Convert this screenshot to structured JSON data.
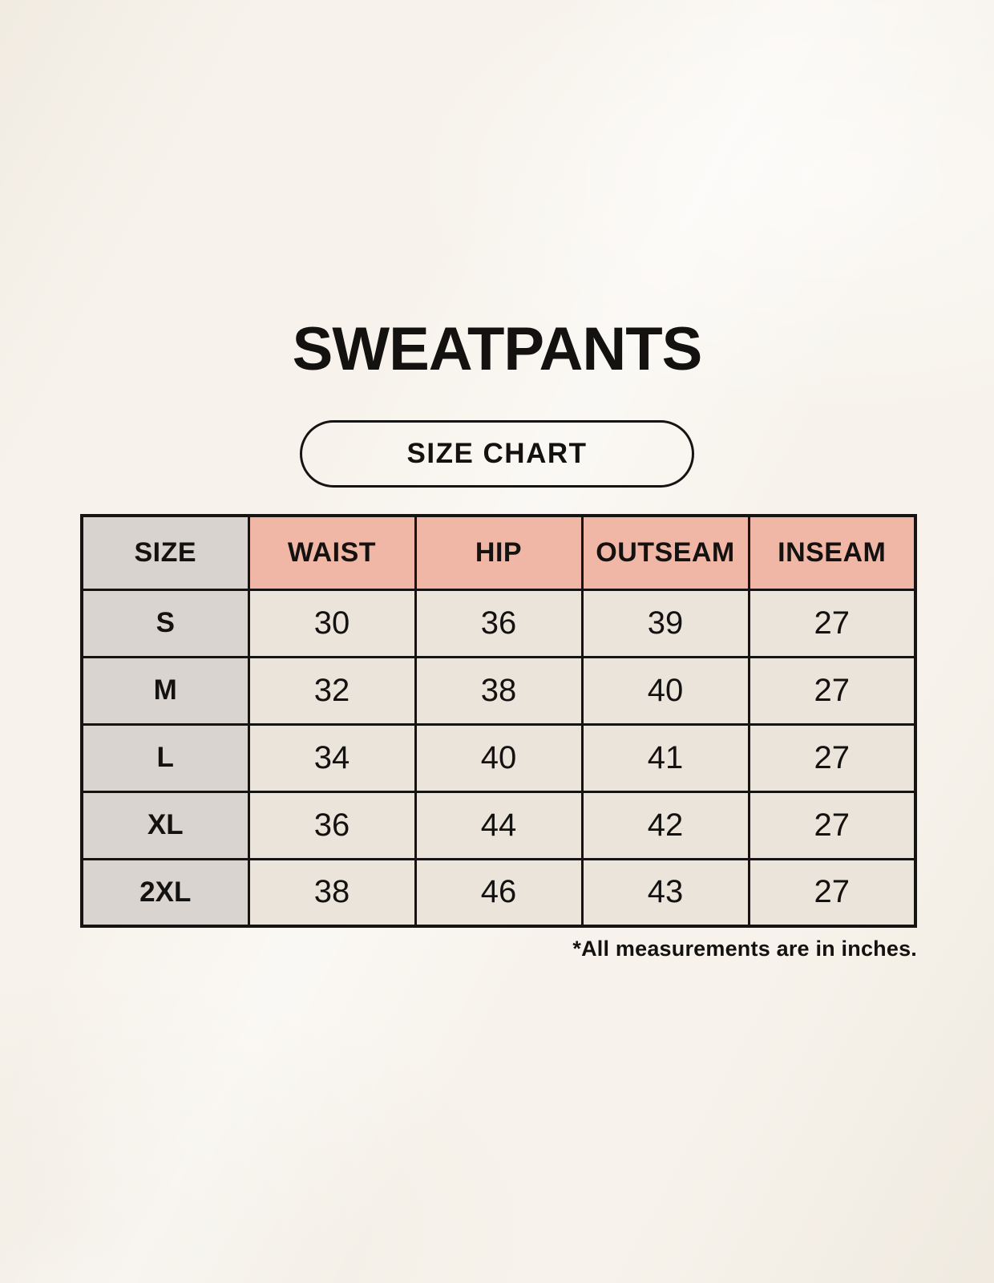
{
  "page": {
    "title": "SWEATPANTS",
    "badge_label": "SIZE CHART",
    "footnote": "*All measurements are in inches."
  },
  "table": {
    "columns": [
      "SIZE",
      "WAIST",
      "HIP",
      "OUTSEAM",
      "INSEAM"
    ],
    "rows": [
      {
        "size": "S",
        "values": [
          "30",
          "36",
          "39",
          "27"
        ]
      },
      {
        "size": "M",
        "values": [
          "32",
          "38",
          "40",
          "27"
        ]
      },
      {
        "size": "L",
        "values": [
          "34",
          "40",
          "41",
          "27"
        ]
      },
      {
        "size": "XL",
        "values": [
          "36",
          "44",
          "42",
          "27"
        ]
      },
      {
        "size": "2XL",
        "values": [
          "38",
          "46",
          "43",
          "27"
        ]
      }
    ]
  },
  "colors": {
    "background": "#f7f3ec",
    "header_pink": "#f1b7a6",
    "header_gray": "#d9d3cf",
    "row_gray": "#dad4d0",
    "cell_cream": "#eae4da",
    "border_color": "#161412",
    "text_color": "#141210"
  }
}
